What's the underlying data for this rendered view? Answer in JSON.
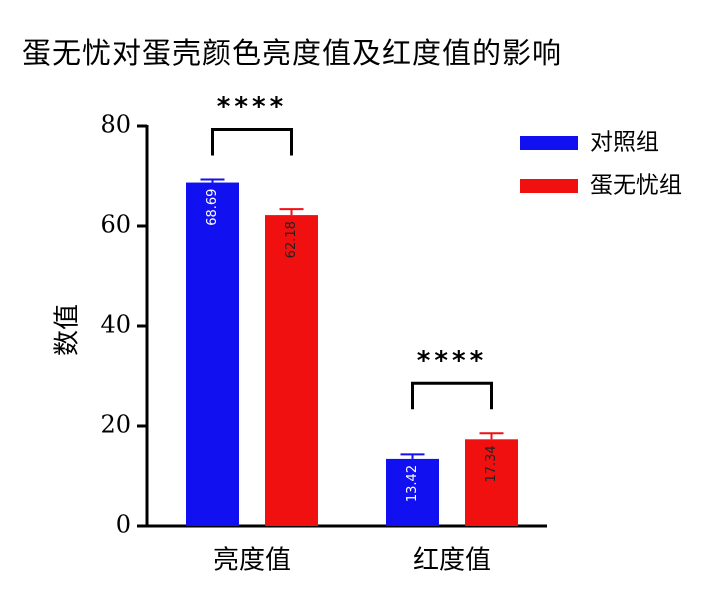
{
  "chart_data": {
    "type": "bar",
    "title": "蛋无忧对蛋壳颜色亮度值及红度值的影响",
    "y_label": "数值",
    "categories": [
      "亮度值",
      "红度值"
    ],
    "series": [
      {
        "name": "对照组",
        "color": "#1010f0",
        "values": [
          68.69,
          13.42
        ],
        "errors": [
          0.6,
          0.9
        ]
      },
      {
        "name": "蛋无忧组",
        "color": "#f01010",
        "values": [
          62.18,
          17.34
        ],
        "errors": [
          1.2,
          1.2
        ]
      }
    ],
    "annotations": [
      "****",
      "****"
    ],
    "ylim": [
      0,
      80
    ],
    "yticks": [
      0,
      20,
      40,
      60,
      80
    ],
    "legend": "upper right"
  }
}
